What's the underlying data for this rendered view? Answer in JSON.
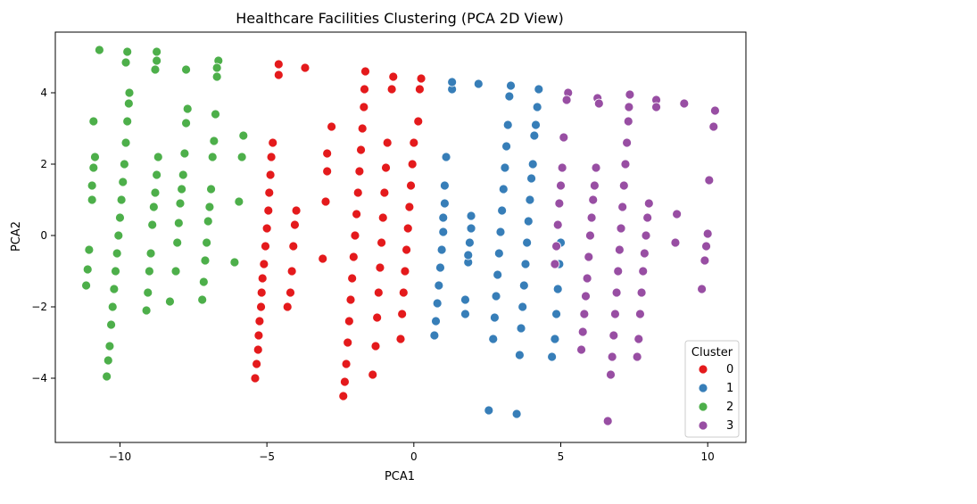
{
  "chart_data": {
    "type": "scatter",
    "title": "Healthcare Facilities Clustering (PCA 2D View)",
    "xlabel": "PCA1",
    "ylabel": "PCA2",
    "xlim": [
      -12.2,
      11.3
    ],
    "ylim": [
      -5.8,
      5.7
    ],
    "xticks": [
      -10,
      -5,
      0,
      5,
      10
    ],
    "yticks": [
      -4,
      -2,
      0,
      2,
      4
    ],
    "xtick_labels": [
      "−10",
      "−5",
      "0",
      "5",
      "10"
    ],
    "ytick_labels": [
      "−4",
      "−2",
      "0",
      "2",
      "4"
    ],
    "grid": false,
    "legend": {
      "title": "Cluster",
      "placement": "lower-right"
    },
    "series": [
      {
        "name": "0",
        "color": "#e41a1c",
        "points": [
          [
            -5.4,
            -4.0
          ],
          [
            -5.35,
            -3.6
          ],
          [
            -5.3,
            -3.2
          ],
          [
            -5.28,
            -2.8
          ],
          [
            -5.25,
            -2.4
          ],
          [
            -5.2,
            -2.0
          ],
          [
            -5.18,
            -1.6
          ],
          [
            -5.15,
            -1.2
          ],
          [
            -5.1,
            -0.8
          ],
          [
            -5.05,
            -0.3
          ],
          [
            -5.0,
            0.2
          ],
          [
            -4.95,
            0.7
          ],
          [
            -4.92,
            1.2
          ],
          [
            -4.88,
            1.7
          ],
          [
            -4.85,
            2.2
          ],
          [
            -4.8,
            2.6
          ],
          [
            -4.6,
            4.5
          ],
          [
            -4.6,
            4.8
          ],
          [
            -3.7,
            4.7
          ],
          [
            -4.3,
            -2.0
          ],
          [
            -4.2,
            -1.6
          ],
          [
            -4.15,
            -1.0
          ],
          [
            -4.1,
            -0.3
          ],
          [
            -4.05,
            0.3
          ],
          [
            -4.0,
            0.7
          ],
          [
            -2.8,
            3.05
          ],
          [
            -2.95,
            2.3
          ],
          [
            -2.95,
            1.8
          ],
          [
            -3.0,
            0.95
          ],
          [
            -3.1,
            -0.65
          ],
          [
            -2.4,
            -4.5
          ],
          [
            -2.35,
            -4.1
          ],
          [
            -2.3,
            -3.6
          ],
          [
            -2.25,
            -3.0
          ],
          [
            -2.2,
            -2.4
          ],
          [
            -2.15,
            -1.8
          ],
          [
            -2.1,
            -1.2
          ],
          [
            -2.05,
            -0.6
          ],
          [
            -2.0,
            0.0
          ],
          [
            -1.95,
            0.6
          ],
          [
            -1.9,
            1.2
          ],
          [
            -1.85,
            1.8
          ],
          [
            -1.8,
            2.4
          ],
          [
            -1.75,
            3.0
          ],
          [
            -1.7,
            3.6
          ],
          [
            -1.68,
            4.1
          ],
          [
            -1.65,
            4.6
          ],
          [
            -1.4,
            -3.9
          ],
          [
            -1.3,
            -3.1
          ],
          [
            -1.25,
            -2.3
          ],
          [
            -1.2,
            -1.6
          ],
          [
            -1.15,
            -0.9
          ],
          [
            -1.1,
            -0.2
          ],
          [
            -1.05,
            0.5
          ],
          [
            -1.0,
            1.2
          ],
          [
            -0.95,
            1.9
          ],
          [
            -0.9,
            2.6
          ],
          [
            -0.75,
            4.1
          ],
          [
            -0.7,
            4.45
          ],
          [
            -0.45,
            -2.9
          ],
          [
            -0.4,
            -2.2
          ],
          [
            -0.35,
            -1.6
          ],
          [
            -0.3,
            -1.0
          ],
          [
            -0.25,
            -0.4
          ],
          [
            -0.2,
            0.2
          ],
          [
            -0.15,
            0.8
          ],
          [
            -0.1,
            1.4
          ],
          [
            -0.05,
            2.0
          ],
          [
            0.0,
            2.6
          ],
          [
            0.15,
            3.2
          ],
          [
            0.2,
            4.1
          ],
          [
            0.25,
            4.4
          ]
        ]
      },
      {
        "name": "1",
        "color": "#377eb8",
        "points": [
          [
            0.7,
            -2.8
          ],
          [
            0.75,
            -2.4
          ],
          [
            0.8,
            -1.9
          ],
          [
            0.85,
            -1.4
          ],
          [
            0.9,
            -0.9
          ],
          [
            0.95,
            -0.4
          ],
          [
            1.0,
            0.1
          ],
          [
            1.0,
            0.5
          ],
          [
            1.05,
            0.9
          ],
          [
            1.05,
            1.4
          ],
          [
            1.1,
            2.2
          ],
          [
            1.3,
            4.1
          ],
          [
            1.3,
            4.3
          ],
          [
            2.2,
            4.25
          ],
          [
            1.75,
            -2.2
          ],
          [
            1.75,
            -1.8
          ],
          [
            1.85,
            -0.75
          ],
          [
            1.85,
            -0.55
          ],
          [
            1.9,
            -0.2
          ],
          [
            1.95,
            0.2
          ],
          [
            1.95,
            0.55
          ],
          [
            2.55,
            -4.9
          ],
          [
            2.7,
            -2.9
          ],
          [
            2.75,
            -2.3
          ],
          [
            2.8,
            -1.7
          ],
          [
            2.85,
            -1.1
          ],
          [
            2.9,
            -0.5
          ],
          [
            2.95,
            0.1
          ],
          [
            3.0,
            0.7
          ],
          [
            3.05,
            1.3
          ],
          [
            3.1,
            1.9
          ],
          [
            3.15,
            2.5
          ],
          [
            3.2,
            3.1
          ],
          [
            3.25,
            3.9
          ],
          [
            3.3,
            4.2
          ],
          [
            3.5,
            -5.0
          ],
          [
            3.6,
            -3.35
          ],
          [
            3.65,
            -2.6
          ],
          [
            3.7,
            -2.0
          ],
          [
            3.75,
            -1.4
          ],
          [
            3.8,
            -0.8
          ],
          [
            3.85,
            -0.2
          ],
          [
            3.9,
            0.4
          ],
          [
            3.95,
            1.0
          ],
          [
            4.0,
            1.6
          ],
          [
            4.05,
            2.0
          ],
          [
            4.1,
            2.8
          ],
          [
            4.15,
            3.1
          ],
          [
            4.2,
            3.6
          ],
          [
            4.25,
            4.1
          ],
          [
            4.7,
            -3.4
          ],
          [
            4.8,
            -2.9
          ],
          [
            4.85,
            -2.2
          ],
          [
            4.9,
            -1.5
          ],
          [
            4.95,
            -0.8
          ],
          [
            5.0,
            -0.2
          ]
        ]
      },
      {
        "name": "2",
        "color": "#4daf4a",
        "points": [
          [
            -10.7,
            5.2
          ],
          [
            -9.75,
            5.15
          ],
          [
            -9.8,
            4.85
          ],
          [
            -8.75,
            5.15
          ],
          [
            -8.75,
            4.9
          ],
          [
            -8.8,
            4.65
          ],
          [
            -7.75,
            4.65
          ],
          [
            -6.65,
            4.9
          ],
          [
            -6.7,
            4.7
          ],
          [
            -6.7,
            4.45
          ],
          [
            -11.15,
            -1.4
          ],
          [
            -11.1,
            -0.95
          ],
          [
            -11.05,
            -0.4
          ],
          [
            -10.9,
            3.2
          ],
          [
            -10.95,
            1.0
          ],
          [
            -10.95,
            1.4
          ],
          [
            -10.9,
            1.9
          ],
          [
            -10.85,
            2.2
          ],
          [
            -10.45,
            -3.95
          ],
          [
            -10.4,
            -3.5
          ],
          [
            -10.35,
            -3.1
          ],
          [
            -10.3,
            -2.5
          ],
          [
            -10.25,
            -2.0
          ],
          [
            -10.2,
            -1.5
          ],
          [
            -10.15,
            -1.0
          ],
          [
            -10.1,
            -0.5
          ],
          [
            -10.05,
            0.0
          ],
          [
            -10.0,
            0.5
          ],
          [
            -9.95,
            1.0
          ],
          [
            -9.9,
            1.5
          ],
          [
            -9.85,
            2.0
          ],
          [
            -9.8,
            2.6
          ],
          [
            -9.75,
            3.2
          ],
          [
            -9.7,
            3.7
          ],
          [
            -9.68,
            4.0
          ],
          [
            -9.1,
            -2.1
          ],
          [
            -9.05,
            -1.6
          ],
          [
            -9.0,
            -1.0
          ],
          [
            -8.95,
            -0.5
          ],
          [
            -8.9,
            0.3
          ],
          [
            -8.85,
            0.8
          ],
          [
            -8.8,
            1.2
          ],
          [
            -8.75,
            1.7
          ],
          [
            -8.7,
            2.2
          ],
          [
            -8.3,
            -1.85
          ],
          [
            -8.1,
            -1.0
          ],
          [
            -8.05,
            -0.2
          ],
          [
            -8.0,
            0.35
          ],
          [
            -7.95,
            0.9
          ],
          [
            -7.9,
            1.3
          ],
          [
            -7.85,
            1.7
          ],
          [
            -7.8,
            2.3
          ],
          [
            -7.75,
            3.15
          ],
          [
            -7.7,
            3.55
          ],
          [
            -7.2,
            -1.8
          ],
          [
            -7.15,
            -1.3
          ],
          [
            -7.1,
            -0.7
          ],
          [
            -7.05,
            -0.2
          ],
          [
            -7.0,
            0.4
          ],
          [
            -6.95,
            0.8
          ],
          [
            -6.9,
            1.3
          ],
          [
            -6.85,
            2.2
          ],
          [
            -6.8,
            2.65
          ],
          [
            -6.75,
            3.4
          ],
          [
            -6.1,
            -0.75
          ],
          [
            -5.95,
            0.95
          ],
          [
            -5.85,
            2.2
          ],
          [
            -5.8,
            2.8
          ]
        ]
      },
      {
        "name": "3",
        "color": "#984ea3",
        "points": [
          [
            5.25,
            4.0
          ],
          [
            5.2,
            3.8
          ],
          [
            5.1,
            2.75
          ],
          [
            5.05,
            1.9
          ],
          [
            5.0,
            1.4
          ],
          [
            4.95,
            0.9
          ],
          [
            4.9,
            0.3
          ],
          [
            4.85,
            -0.3
          ],
          [
            4.8,
            -0.8
          ],
          [
            5.7,
            -3.2
          ],
          [
            5.75,
            -2.7
          ],
          [
            5.8,
            -2.2
          ],
          [
            5.85,
            -1.7
          ],
          [
            5.9,
            -1.2
          ],
          [
            5.95,
            -0.6
          ],
          [
            6.0,
            0.0
          ],
          [
            6.05,
            0.5
          ],
          [
            6.1,
            1.0
          ],
          [
            6.15,
            1.4
          ],
          [
            6.2,
            1.9
          ],
          [
            6.25,
            3.85
          ],
          [
            6.3,
            3.7
          ],
          [
            6.6,
            -5.2
          ],
          [
            6.7,
            -3.9
          ],
          [
            6.75,
            -3.4
          ],
          [
            6.8,
            -2.8
          ],
          [
            6.85,
            -2.2
          ],
          [
            6.9,
            -1.6
          ],
          [
            6.95,
            -1.0
          ],
          [
            7.0,
            -0.4
          ],
          [
            7.05,
            0.2
          ],
          [
            7.1,
            0.8
          ],
          [
            7.15,
            1.4
          ],
          [
            7.2,
            2.0
          ],
          [
            7.25,
            2.6
          ],
          [
            7.3,
            3.2
          ],
          [
            7.32,
            3.6
          ],
          [
            7.35,
            3.95
          ],
          [
            7.6,
            -3.4
          ],
          [
            7.65,
            -2.9
          ],
          [
            7.7,
            -2.2
          ],
          [
            7.75,
            -1.6
          ],
          [
            7.8,
            -1.0
          ],
          [
            7.85,
            -0.5
          ],
          [
            7.9,
            0.0
          ],
          [
            7.95,
            0.5
          ],
          [
            8.0,
            0.9
          ],
          [
            8.25,
            3.8
          ],
          [
            8.25,
            3.6
          ],
          [
            9.2,
            3.7
          ],
          [
            8.95,
            0.6
          ],
          [
            8.9,
            -0.2
          ],
          [
            9.8,
            -1.5
          ],
          [
            9.9,
            -0.7
          ],
          [
            9.95,
            -0.3
          ],
          [
            10.0,
            0.05
          ],
          [
            10.05,
            1.55
          ],
          [
            10.2,
            3.05
          ],
          [
            10.25,
            3.5
          ]
        ]
      }
    ]
  }
}
